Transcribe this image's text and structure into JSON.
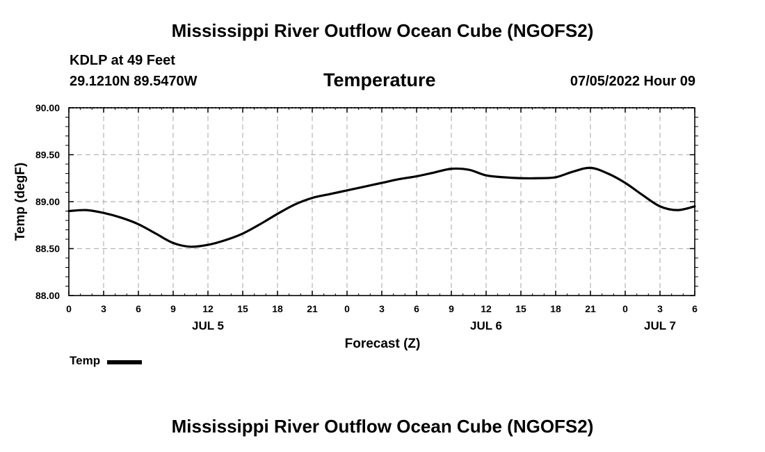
{
  "header": {
    "title": "Mississippi River Outflow Ocean Cube (NGOFS2)",
    "station": "KDLP at 49 Feet",
    "coords": "29.1210N  89.5470W",
    "variable": "Temperature",
    "datetime": "07/05/2022 Hour 09"
  },
  "footer": {
    "title": "Mississippi River Outflow Ocean Cube (NGOFS2)"
  },
  "legend": {
    "label": "Temp",
    "color": "#000000"
  },
  "chart_data": {
    "type": "line",
    "title": "Temperature",
    "xlabel": "Forecast (Z)",
    "ylabel": "Temp (degF)",
    "ylim": [
      88.0,
      90.0
    ],
    "xlim": [
      0,
      54
    ],
    "grid": true,
    "yticks": [
      88.0,
      88.5,
      89.0,
      89.5,
      90.0
    ],
    "ytick_labels": [
      "88.00",
      "88.50",
      "89.00",
      "89.50",
      "90.00"
    ],
    "xticks": [
      0,
      3,
      6,
      9,
      12,
      15,
      18,
      21,
      24,
      27,
      30,
      33,
      36,
      39,
      42,
      45,
      48,
      51,
      54
    ],
    "xtick_labels": [
      "0",
      "3",
      "6",
      "9",
      "12",
      "15",
      "18",
      "21",
      "0",
      "3",
      "6",
      "9",
      "12",
      "15",
      "18",
      "21",
      "0",
      "3",
      "6"
    ],
    "date_labels": [
      {
        "hour": 12,
        "label": "JUL 5"
      },
      {
        "hour": 36,
        "label": "JUL 6"
      },
      {
        "hour": 51,
        "label": "JUL 7"
      }
    ],
    "series": [
      {
        "name": "Temp",
        "color": "#000000",
        "x": [
          0,
          1.5,
          3,
          4.5,
          6,
          7.5,
          9,
          10.5,
          12,
          13.5,
          15,
          16.5,
          18,
          19.5,
          21,
          22.5,
          24,
          25.5,
          27,
          28.5,
          30,
          31.5,
          33,
          34.5,
          36,
          37.5,
          39,
          40.5,
          42,
          43.5,
          45,
          46.5,
          48,
          49.5,
          51,
          52.5,
          54
        ],
        "values": [
          88.9,
          88.91,
          88.88,
          88.83,
          88.76,
          88.66,
          88.56,
          88.52,
          88.54,
          88.59,
          88.66,
          88.76,
          88.87,
          88.97,
          89.04,
          89.08,
          89.12,
          89.16,
          89.2,
          89.24,
          89.27,
          89.31,
          89.35,
          89.34,
          89.28,
          89.26,
          89.25,
          89.25,
          89.26,
          89.32,
          89.36,
          89.3,
          89.2,
          89.07,
          88.95,
          88.91,
          88.95
        ]
      }
    ]
  }
}
